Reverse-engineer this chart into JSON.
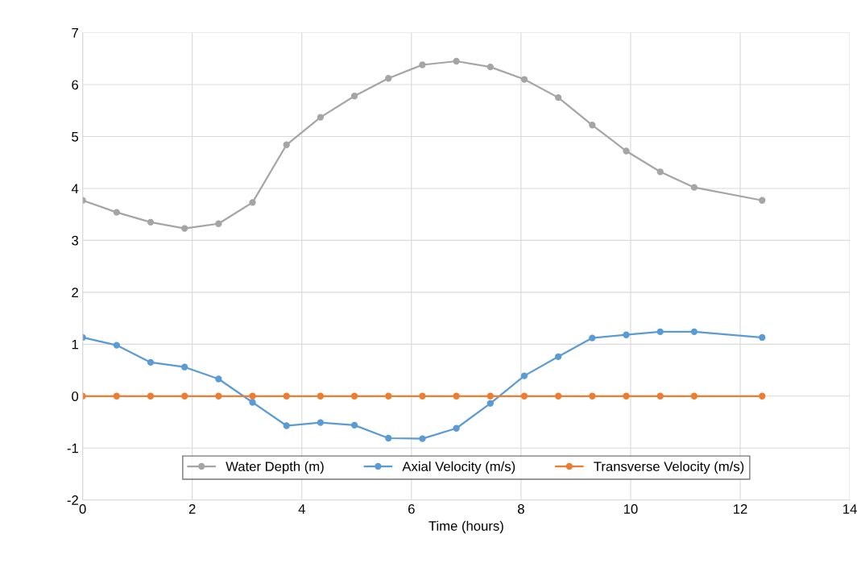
{
  "chart_data": {
    "type": "line",
    "xlabel": "Time (hours)",
    "x": [
      0,
      0.62,
      1.24,
      1.86,
      2.48,
      3.1,
      3.72,
      4.34,
      4.96,
      5.58,
      6.2,
      6.82,
      7.44,
      8.06,
      8.68,
      9.3,
      9.92,
      10.54,
      11.16,
      12.4
    ],
    "series": [
      {
        "name": "Water Depth (m)",
        "color": "#a5a5a5",
        "values": [
          3.77,
          3.54,
          3.35,
          3.23,
          3.32,
          3.73,
          4.84,
          5.37,
          5.78,
          6.12,
          6.38,
          6.45,
          6.34,
          6.1,
          5.75,
          5.22,
          4.72,
          4.32,
          4.02,
          3.77
        ]
      },
      {
        "name": "Axial Velocity (m/s)",
        "color": "#5b9bd5",
        "values": [
          1.13,
          0.98,
          0.65,
          0.56,
          0.33,
          -0.12,
          -0.57,
          -0.51,
          -0.56,
          -0.81,
          -0.82,
          -0.62,
          -0.14,
          0.39,
          0.76,
          1.12,
          1.18,
          1.24,
          1.24,
          1.13
        ]
      },
      {
        "name": "Transverse Velocity (m/s)",
        "color": "#ed7d31",
        "values": [
          0,
          0,
          0,
          0,
          0,
          0,
          0,
          0,
          0,
          0,
          0,
          0,
          0,
          0,
          0,
          0,
          0,
          0,
          0,
          0
        ]
      }
    ],
    "xlim": [
      0,
      14
    ],
    "xticks": [
      0,
      2,
      4,
      6,
      8,
      10,
      12,
      14
    ],
    "ylim": [
      -2,
      7
    ],
    "yticks": [
      -2,
      -1,
      0,
      1,
      2,
      3,
      4,
      5,
      6,
      7
    ],
    "grid": true,
    "legend": "bottom",
    "marker": "circle",
    "line_style": "solid"
  }
}
